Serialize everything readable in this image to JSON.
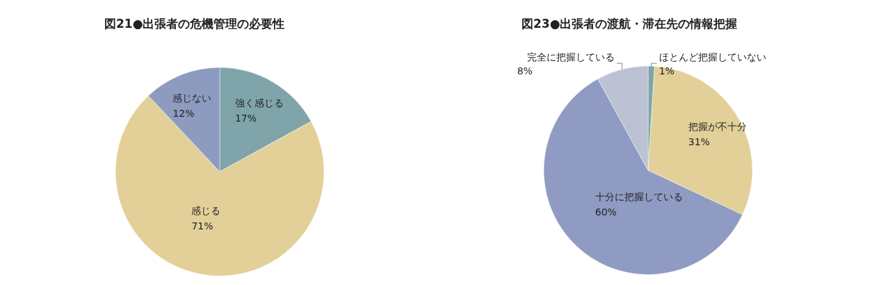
{
  "chart_data": [
    {
      "type": "pie",
      "title": "図21●出張者の危機管理の必要性",
      "categories": [
        "強く感じる",
        "感じる",
        "感じない"
      ],
      "values": [
        17,
        71,
        12
      ],
      "value_labels": [
        "17%",
        "71%",
        "12%"
      ],
      "colors": [
        "#7fa5aa",
        "#e2d098",
        "#8e9bc0"
      ]
    },
    {
      "type": "pie",
      "title": "図23●出張者の渡航・滞在先の情報把握",
      "categories": [
        "ほとんど把握していない",
        "把握が不十分",
        "十分に把握している",
        "完全に把握している"
      ],
      "values": [
        1,
        31,
        60,
        8
      ],
      "value_labels": [
        "1%",
        "31%",
        "60%",
        "8%"
      ],
      "colors": [
        "#7fa5aa",
        "#e2d098",
        "#8f9bc2",
        "#bcc2d3"
      ]
    }
  ]
}
